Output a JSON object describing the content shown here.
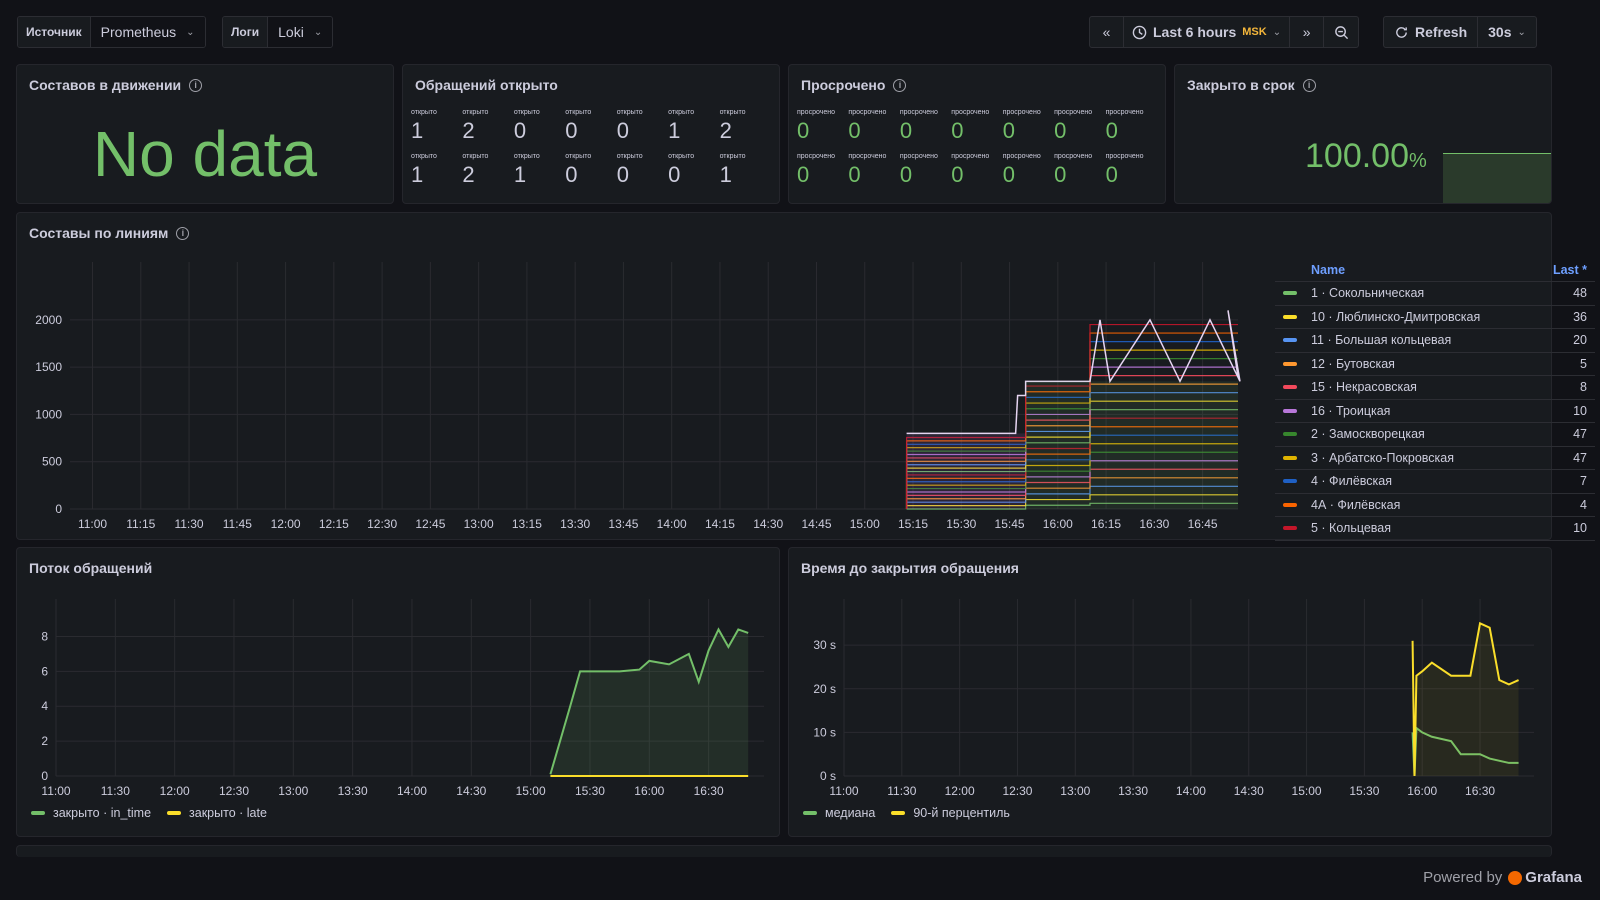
{
  "vars": [
    {
      "label": "Источник",
      "value": "Prometheus"
    },
    {
      "label": "Логи",
      "value": "Loki"
    }
  ],
  "time": {
    "range": "Last 6 hours",
    "tz": "MSK",
    "refresh": "Refresh",
    "interval": "30s"
  },
  "panels": {
    "trains_moving": {
      "title": "Составов в движении",
      "nodata": "No data"
    },
    "open": {
      "title": "Обращений открыто",
      "cell_label": "открыто",
      "row1": [
        "1",
        "2",
        "0",
        "0",
        "0",
        "1",
        "2"
      ],
      "row2": [
        "1",
        "2",
        "1",
        "0",
        "0",
        "0",
        "1"
      ]
    },
    "overdue": {
      "title": "Просрочено",
      "cell_label": "просрочено",
      "row1": [
        "0",
        "0",
        "0",
        "0",
        "0",
        "0",
        "0"
      ],
      "row2": [
        "0",
        "0",
        "0",
        "0",
        "0",
        "0",
        "0"
      ]
    },
    "closed_ontime": {
      "title": "Закрыто в срок",
      "value": "100.00",
      "unit": "%"
    },
    "lines": {
      "title": "Составы по линиям"
    },
    "flow": {
      "title": "Поток обращений"
    },
    "ttc": {
      "title": "Время до закрытия обращения"
    }
  },
  "legend_table": {
    "col_name": "Name",
    "col_last": "Last *",
    "rows": [
      {
        "name": "1 · Сокольническая",
        "last": "48",
        "color": "#73bf69"
      },
      {
        "name": "10 · Люблинско-Дмитровская",
        "last": "36",
        "color": "#fade2a"
      },
      {
        "name": "11 · Большая кольцевая",
        "last": "20",
        "color": "#5794f2"
      },
      {
        "name": "12 · Бутовская",
        "last": "5",
        "color": "#ff9830"
      },
      {
        "name": "15 · Некрасовская",
        "last": "8",
        "color": "#f2495c"
      },
      {
        "name": "16 · Троицкая",
        "last": "10",
        "color": "#b877d9"
      },
      {
        "name": "2 · Замоскворецкая",
        "last": "47",
        "color": "#37872d"
      },
      {
        "name": "3 · Арбатско-Покровская",
        "last": "47",
        "color": "#e0b400"
      },
      {
        "name": "4 · Филёвская",
        "last": "7",
        "color": "#1f60c4"
      },
      {
        "name": "4А · Филёвская",
        "last": "4",
        "color": "#fa6400"
      },
      {
        "name": "5 · Кольцевая",
        "last": "10",
        "color": "#c4162a"
      }
    ]
  },
  "chart_data": [
    {
      "type": "line",
      "title": "Составы по линиям",
      "x_ticks": [
        "11:00",
        "11:15",
        "11:30",
        "11:45",
        "12:00",
        "12:15",
        "12:30",
        "12:45",
        "13:00",
        "13:15",
        "13:30",
        "13:45",
        "14:00",
        "14:15",
        "14:30",
        "14:45",
        "15:00",
        "15:15",
        "15:30",
        "15:45",
        "16:00",
        "16:15",
        "16:30",
        "16:45"
      ],
      "y_ticks": [
        "0",
        "500",
        "1000",
        "1500",
        "2000"
      ],
      "ylim": [
        0,
        2400
      ],
      "series_approx": {
        "start": "15:13",
        "stack_total_steps": [
          [
            "15:13",
            800
          ],
          [
            "15:50",
            1350
          ],
          [
            "16:15",
            2000
          ],
          [
            "16:50",
            2100
          ]
        ]
      }
    },
    {
      "type": "line",
      "title": "Поток обращений",
      "x_ticks": [
        "11:00",
        "11:30",
        "12:00",
        "12:30",
        "13:00",
        "13:30",
        "14:00",
        "14:30",
        "15:00",
        "15:30",
        "16:00",
        "16:30"
      ],
      "y_ticks": [
        "0",
        "2",
        "4",
        "6",
        "8"
      ],
      "ylim": [
        0,
        9
      ],
      "series": [
        {
          "name": "закрыто · in_time",
          "color": "#73bf69",
          "x": [
            "15:10",
            "15:20",
            "15:25",
            "15:35",
            "15:45",
            "15:55",
            "16:00",
            "16:10",
            "16:20",
            "16:25",
            "16:30",
            "16:35",
            "16:40",
            "16:45",
            "16:50"
          ],
          "values": [
            0.1,
            4,
            6,
            6,
            6,
            6.1,
            6.6,
            6.4,
            7,
            5.4,
            7.2,
            8.4,
            7.4,
            8.4,
            8.2
          ]
        },
        {
          "name": "закрыто · late",
          "color": "#fade2a",
          "x": [
            "15:10",
            "16:50"
          ],
          "values": [
            0,
            0
          ]
        }
      ]
    },
    {
      "type": "line",
      "title": "Время до закрытия обращения",
      "x_ticks": [
        "11:00",
        "11:30",
        "12:00",
        "12:30",
        "13:00",
        "13:30",
        "14:00",
        "14:30",
        "15:00",
        "15:30",
        "16:00",
        "16:30"
      ],
      "y_ticks": [
        "0 s",
        "10 s",
        "20 s",
        "30 s"
      ],
      "ylim": [
        0,
        36
      ],
      "series": [
        {
          "name": "медиана",
          "color": "#73bf69",
          "x": [
            "15:55",
            "15:56",
            "15:57",
            "16:00",
            "16:05",
            "16:15",
            "16:20",
            "16:30",
            "16:35",
            "16:45",
            "16:50"
          ],
          "values": [
            10,
            0,
            11,
            10,
            9,
            8,
            5,
            5,
            4,
            3,
            3
          ]
        },
        {
          "name": "90-й перцентиль",
          "color": "#fade2a",
          "x": [
            "15:55",
            "15:56",
            "15:57",
            "16:00",
            "16:05",
            "16:15",
            "16:25",
            "16:30",
            "16:35",
            "16:40",
            "16:45",
            "16:50"
          ],
          "values": [
            31,
            0,
            23,
            24,
            26,
            23,
            23,
            35,
            34,
            22,
            21,
            22
          ]
        }
      ]
    }
  ],
  "footer": {
    "powered": "Powered by",
    "brand": "Grafana"
  }
}
